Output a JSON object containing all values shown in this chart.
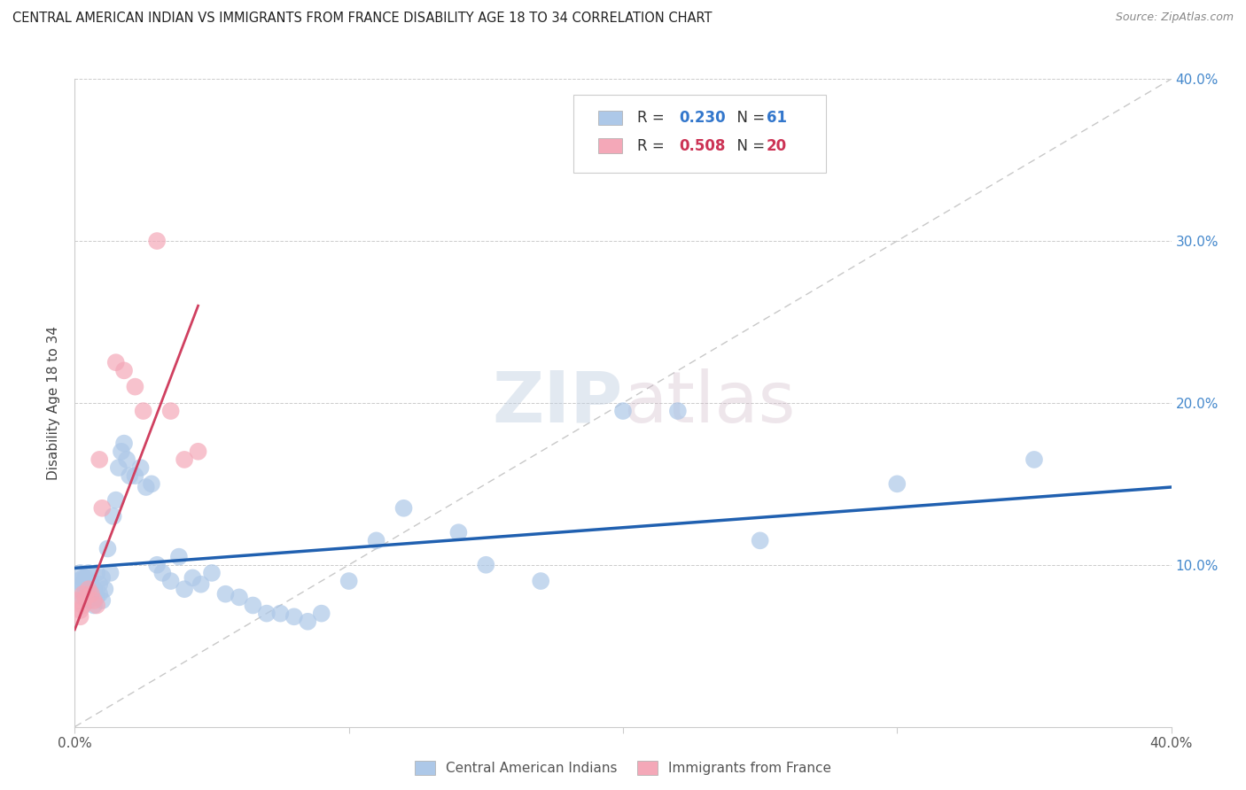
{
  "title": "CENTRAL AMERICAN INDIAN VS IMMIGRANTS FROM FRANCE DISABILITY AGE 18 TO 34 CORRELATION CHART",
  "source": "Source: ZipAtlas.com",
  "ylabel": "Disability Age 18 to 34",
  "xlim": [
    0.0,
    0.4
  ],
  "ylim": [
    0.0,
    0.4
  ],
  "xtick_vals": [
    0.0,
    0.1,
    0.2,
    0.3,
    0.4
  ],
  "xtick_labels": [
    "0.0%",
    "",
    "",
    "",
    "40.0%"
  ],
  "ytick_vals": [
    0.0,
    0.1,
    0.2,
    0.3,
    0.4
  ],
  "ytick_labels_right": [
    "",
    "10.0%",
    "20.0%",
    "30.0%",
    "40.0%"
  ],
  "blue_color": "#adc8e8",
  "pink_color": "#f4a8b8",
  "blue_line_color": "#2060b0",
  "pink_line_color": "#d04060",
  "diag_line_color": "#c8c8c8",
  "R_blue": 0.23,
  "N_blue": 61,
  "R_pink": 0.508,
  "N_pink": 20,
  "legend_label_blue": "Central American Indians",
  "legend_label_pink": "Immigrants from France",
  "watermark_zip": "ZIP",
  "watermark_atlas": "atlas",
  "blue_scatter_x": [
    0.001,
    0.002,
    0.002,
    0.003,
    0.003,
    0.003,
    0.004,
    0.004,
    0.005,
    0.005,
    0.006,
    0.006,
    0.007,
    0.007,
    0.008,
    0.008,
    0.009,
    0.009,
    0.01,
    0.01,
    0.011,
    0.012,
    0.013,
    0.014,
    0.015,
    0.016,
    0.017,
    0.018,
    0.019,
    0.02,
    0.022,
    0.024,
    0.026,
    0.028,
    0.03,
    0.032,
    0.035,
    0.038,
    0.04,
    0.043,
    0.046,
    0.05,
    0.055,
    0.06,
    0.065,
    0.07,
    0.075,
    0.08,
    0.085,
    0.09,
    0.1,
    0.11,
    0.12,
    0.14,
    0.15,
    0.17,
    0.2,
    0.22,
    0.25,
    0.3,
    0.35
  ],
  "blue_scatter_y": [
    0.09,
    0.085,
    0.095,
    0.08,
    0.088,
    0.092,
    0.085,
    0.092,
    0.078,
    0.095,
    0.082,
    0.088,
    0.075,
    0.085,
    0.08,
    0.095,
    0.082,
    0.088,
    0.078,
    0.092,
    0.085,
    0.11,
    0.095,
    0.13,
    0.14,
    0.16,
    0.17,
    0.175,
    0.165,
    0.155,
    0.155,
    0.16,
    0.148,
    0.15,
    0.1,
    0.095,
    0.09,
    0.105,
    0.085,
    0.092,
    0.088,
    0.095,
    0.082,
    0.08,
    0.075,
    0.07,
    0.07,
    0.068,
    0.065,
    0.07,
    0.09,
    0.115,
    0.135,
    0.12,
    0.1,
    0.09,
    0.195,
    0.195,
    0.115,
    0.15,
    0.165
  ],
  "pink_scatter_x": [
    0.001,
    0.002,
    0.002,
    0.003,
    0.003,
    0.004,
    0.005,
    0.006,
    0.007,
    0.008,
    0.009,
    0.01,
    0.015,
    0.018,
    0.022,
    0.025,
    0.03,
    0.035,
    0.04,
    0.045
  ],
  "pink_scatter_y": [
    0.078,
    0.072,
    0.068,
    0.075,
    0.082,
    0.08,
    0.085,
    0.082,
    0.078,
    0.075,
    0.165,
    0.135,
    0.225,
    0.22,
    0.21,
    0.195,
    0.3,
    0.195,
    0.165,
    0.17
  ],
  "blue_line_x0": 0.0,
  "blue_line_x1": 0.4,
  "blue_line_y0": 0.098,
  "blue_line_y1": 0.148,
  "pink_line_x0": 0.0,
  "pink_line_x1": 0.045,
  "pink_line_y0": 0.06,
  "pink_line_y1": 0.26
}
